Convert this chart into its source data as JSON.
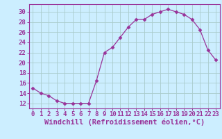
{
  "x": [
    0,
    1,
    2,
    3,
    4,
    5,
    6,
    7,
    8,
    9,
    10,
    11,
    12,
    13,
    14,
    15,
    16,
    17,
    18,
    19,
    20,
    21,
    22,
    23
  ],
  "y": [
    15,
    14,
    13.5,
    12.5,
    12,
    12,
    12,
    12,
    16.5,
    22,
    23,
    25,
    27,
    28.5,
    28.5,
    29.5,
    30,
    30.5,
    30,
    29.5,
    28.5,
    26.5,
    22.5,
    20.5
  ],
  "line_color": "#993399",
  "marker": "D",
  "marker_size": 2.5,
  "bg_color": "#cceeff",
  "grid_color": "#aacccc",
  "xlabel": "Windchill (Refroidissement éolien,°C)",
  "ylabel": "",
  "ylim": [
    11,
    31.5
  ],
  "xlim": [
    -0.5,
    23.5
  ],
  "yticks": [
    12,
    14,
    16,
    18,
    20,
    22,
    24,
    26,
    28,
    30
  ],
  "xticks": [
    0,
    1,
    2,
    3,
    4,
    5,
    6,
    7,
    8,
    9,
    10,
    11,
    12,
    13,
    14,
    15,
    16,
    17,
    18,
    19,
    20,
    21,
    22,
    23
  ],
  "tick_color": "#993399",
  "label_color": "#993399",
  "font_size": 6.5,
  "xlabel_font_size": 7.5
}
